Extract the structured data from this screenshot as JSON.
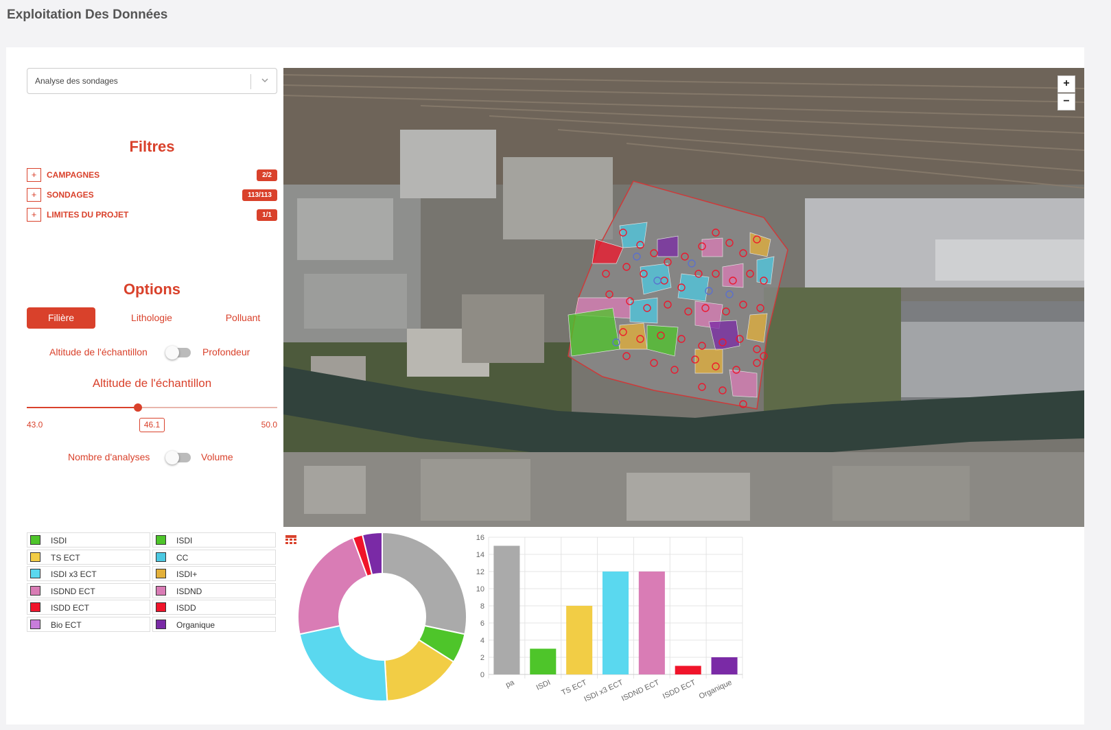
{
  "page": {
    "title": "Exploitation Des Données"
  },
  "selector": {
    "value": "Analyse des sondages"
  },
  "filters": {
    "heading": "Filtres",
    "items": [
      {
        "label": "CAMPAGNES",
        "badge": "2/2"
      },
      {
        "label": "SONDAGES",
        "badge": "113/113"
      },
      {
        "label": "LIMITES DU PROJET",
        "badge": "1/1"
      }
    ]
  },
  "options": {
    "heading": "Options",
    "tabs": [
      {
        "label": "Filière",
        "active": true
      },
      {
        "label": "Lithologie",
        "active": false
      },
      {
        "label": "Polluant",
        "active": false
      }
    ],
    "toggle1": {
      "left": "Altitude de l'échantillon",
      "right": "Profondeur",
      "on": false
    },
    "slider": {
      "title": "Altitude de l'échantillon",
      "min": "43.0",
      "max": "50.0",
      "value": "46.1"
    },
    "toggle2": {
      "left": "Nombre d'analyses",
      "right": "Volume",
      "on": false
    }
  },
  "map": {
    "zoom_in": "+",
    "zoom_out": "−"
  },
  "legend": [
    {
      "label": "ISDI",
      "color": "#4ec52a"
    },
    {
      "label": "ISDI",
      "color": "#4ec52a"
    },
    {
      "label": "TS ECT",
      "color": "#f2cd45"
    },
    {
      "label": "CC",
      "color": "#4cc9e2"
    },
    {
      "label": "ISDI x3 ECT",
      "color": "#5ad8ef"
    },
    {
      "label": "ISDI+",
      "color": "#e3b03a"
    },
    {
      "label": "ISDND ECT",
      "color": "#d97cb5"
    },
    {
      "label": "ISDND",
      "color": "#d97cb5"
    },
    {
      "label": "ISDD ECT",
      "color": "#f0142a"
    },
    {
      "label": "ISDD",
      "color": "#f0142a"
    },
    {
      "label": "Bio ECT",
      "color": "#c87ddb"
    },
    {
      "label": "Organique",
      "color": "#7a2aa6"
    }
  ],
  "chart_data": [
    {
      "type": "pie",
      "categories": [
        "pa",
        "ISDI",
        "TS ECT",
        "ISDI x3 ECT",
        "ISDND ECT",
        "ISDD ECT",
        "Organique"
      ],
      "values": [
        15,
        3,
        8,
        12,
        12,
        1,
        2
      ],
      "colors": [
        "#aaaaaa",
        "#4ec52a",
        "#f2cd45",
        "#5ad8ef",
        "#d97cb5",
        "#f0142a",
        "#7a2aa6"
      ]
    },
    {
      "type": "bar",
      "categories": [
        "pa",
        "ISDI",
        "TS ECT",
        "ISDI x3 ECT",
        "ISDND ECT",
        "ISDD ECT",
        "Organique"
      ],
      "values": [
        15,
        3,
        8,
        12,
        12,
        1,
        2
      ],
      "colors": [
        "#aaaaaa",
        "#4ec52a",
        "#f2cd45",
        "#5ad8ef",
        "#d97cb5",
        "#f0142a",
        "#7a2aa6"
      ],
      "ylim": [
        0,
        16
      ],
      "yticks": [
        "0",
        "2",
        "4",
        "6",
        "8",
        "10",
        "12",
        "14",
        "16"
      ],
      "grid": true
    }
  ]
}
